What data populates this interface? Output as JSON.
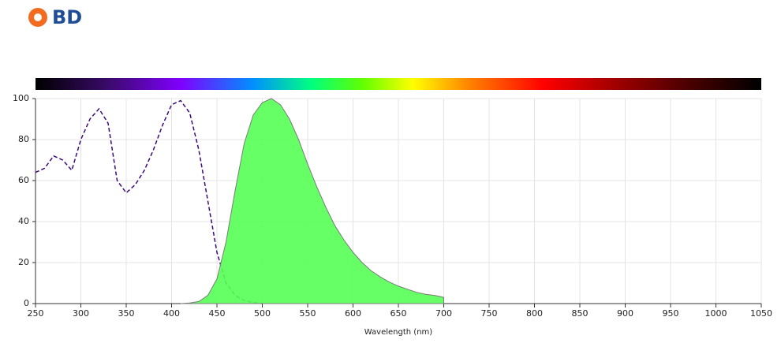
{
  "header": {
    "logo": "BD"
  },
  "chart_data": {
    "type": "line",
    "x_label": "Wavelength (nm)",
    "x": [
      250,
      260,
      270,
      280,
      290,
      300,
      310,
      320,
      330,
      340,
      350,
      360,
      370,
      380,
      390,
      400,
      410,
      420,
      430,
      440,
      450,
      460,
      470,
      480,
      490,
      500,
      510,
      520,
      530,
      540,
      550,
      560,
      570,
      580,
      590,
      600,
      610,
      620,
      630,
      640,
      650,
      660,
      670,
      680,
      690,
      700
    ],
    "series": [
      {
        "color": "#3a0a7a",
        "dashed": true,
        "fill": null,
        "values": [
          64,
          66,
          72,
          70,
          65,
          80,
          90,
          95,
          88,
          60,
          54,
          58,
          65,
          75,
          87,
          97,
          99,
          93,
          75,
          50,
          25,
          10,
          4,
          1.5,
          0.5,
          0,
          null,
          null,
          null,
          null,
          null,
          null,
          null,
          null,
          null,
          null,
          null,
          null,
          null,
          null,
          null,
          null,
          null,
          null,
          null,
          null
        ]
      },
      {
        "color": "#7a7a7a",
        "dashed": false,
        "fill": "#55ff55",
        "values": [
          null,
          null,
          null,
          null,
          null,
          null,
          null,
          null,
          null,
          null,
          null,
          null,
          null,
          null,
          null,
          null,
          0,
          0.3,
          1,
          4,
          12,
          30,
          55,
          78,
          92,
          98,
          100,
          97,
          90,
          80,
          68,
          57,
          47,
          38,
          31,
          25,
          20,
          16,
          13,
          10.5,
          8.5,
          7,
          5.5,
          4.5,
          4,
          3
        ]
      }
    ],
    "xlim": [
      250,
      1050
    ],
    "xticks": [
      250,
      300,
      350,
      400,
      450,
      500,
      550,
      600,
      650,
      700,
      750,
      800,
      850,
      900,
      950,
      1000,
      1050
    ],
    "ylim": [
      0,
      100
    ],
    "yticks": [
      0,
      20,
      40,
      60,
      80,
      100
    ],
    "grid": true
  }
}
